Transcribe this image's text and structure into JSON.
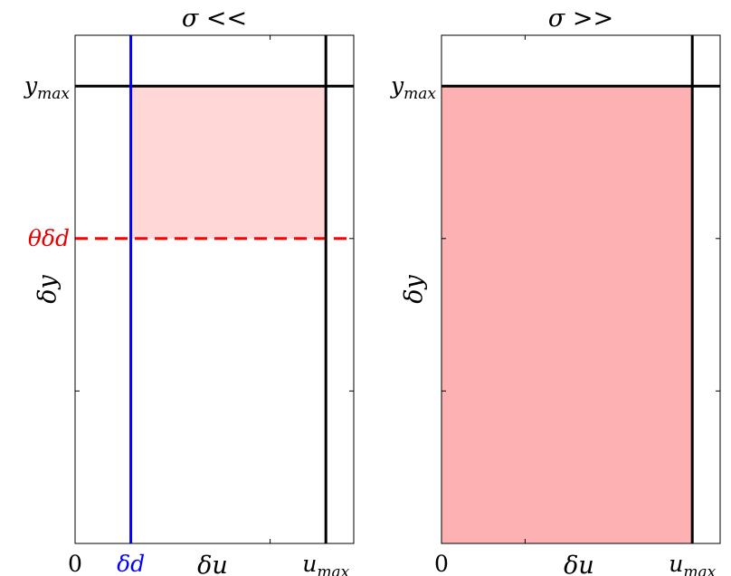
{
  "chart_data": [
    {
      "type": "area",
      "title": "σ <<",
      "xlabel": "δu",
      "ylabel": "δy",
      "x_ticks": [
        {
          "value": 0,
          "label": "0"
        },
        {
          "value": 0.2,
          "label": "δd"
        },
        {
          "value": 0.7,
          "label": ""
        },
        {
          "value": 0.9,
          "label": "u",
          "sub": "max"
        }
      ],
      "y_ticks": [
        {
          "value": 0.3,
          "label": ""
        },
        {
          "value": 0.6,
          "label": "θδd"
        },
        {
          "value": 0.9,
          "label": "y",
          "sub": "max"
        }
      ],
      "xlim": [
        0,
        1
      ],
      "ylim": [
        0,
        1
      ],
      "vlines": [
        {
          "x": 0.2,
          "color": "#0000ff"
        },
        {
          "x": 0.9,
          "color": "#000000"
        }
      ],
      "hlines": [
        {
          "y": 0.9,
          "color": "#000000",
          "dashed": false
        },
        {
          "y": 0.6,
          "color": "#ff0000",
          "dashed": true
        }
      ],
      "shaded_region": {
        "x": [
          0.2,
          0.9
        ],
        "y": [
          0.6,
          0.9
        ],
        "color": "#ffd7d7"
      },
      "label_colors": {
        "δd": "#0000ff",
        "θδd": "#e80000"
      }
    },
    {
      "type": "area",
      "title": "σ >>",
      "xlabel": "δu",
      "ylabel": "δy",
      "x_ticks": [
        {
          "value": 0,
          "label": "0"
        },
        {
          "value": 0.3,
          "label": ""
        },
        {
          "value": 0.9,
          "label": "u",
          "sub": "max"
        }
      ],
      "y_ticks": [
        {
          "value": 0.3,
          "label": ""
        },
        {
          "value": 0.6,
          "label": ""
        },
        {
          "value": 0.9,
          "label": "y",
          "sub": "max"
        }
      ],
      "xlim": [
        0,
        1
      ],
      "ylim": [
        0,
        1
      ],
      "vlines": [
        {
          "x": 0.9,
          "color": "#000000"
        }
      ],
      "hlines": [
        {
          "y": 0.9,
          "color": "#000000",
          "dashed": false
        }
      ],
      "shaded_region": {
        "x": [
          0,
          0.9
        ],
        "y": [
          0,
          0.9
        ],
        "color": "#fdb1b2"
      },
      "label_colors": {}
    }
  ]
}
